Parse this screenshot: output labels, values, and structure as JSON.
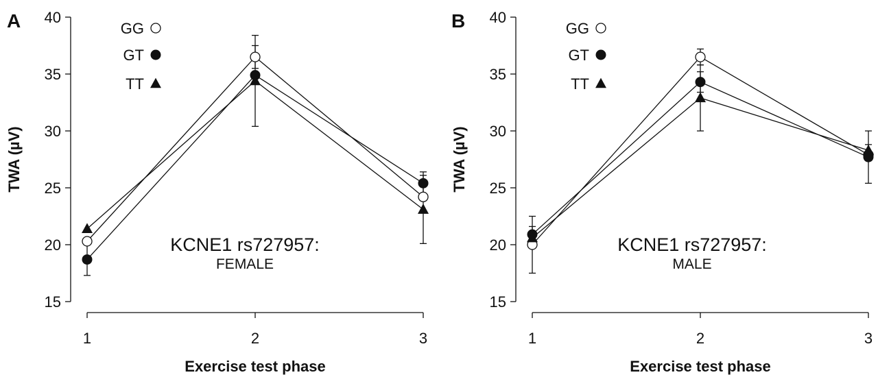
{
  "chart_data": [
    {
      "type": "line",
      "panel_label": "A",
      "annotation_line1": "KCNE1 rs727957:",
      "annotation_line2": "FEMALE",
      "xlabel": "Exercise test phase",
      "ylabel": "TWA (µV)",
      "x": [
        1,
        2,
        3
      ],
      "xticks": [
        "1",
        "2",
        "3"
      ],
      "ylim": [
        15,
        40
      ],
      "yticks": [
        15,
        20,
        25,
        30,
        35,
        40
      ],
      "legend_position": "top-left",
      "series": [
        {
          "name": "GG",
          "marker": "open-circle",
          "values": [
            20.3,
            36.5,
            24.2
          ],
          "err": [
            null,
            1.0,
            null
          ]
        },
        {
          "name": "GT",
          "marker": "filled-circle",
          "values": [
            18.7,
            34.9,
            25.4
          ],
          "err": [
            1.4,
            null,
            1.0
          ]
        },
        {
          "name": "TT",
          "marker": "filled-triangle",
          "values": [
            21.4,
            34.4,
            23.1
          ],
          "err": [
            null,
            4.0,
            3.0
          ]
        }
      ]
    },
    {
      "type": "line",
      "panel_label": "B",
      "annotation_line1": "KCNE1 rs727957:",
      "annotation_line2": "MALE",
      "xlabel": "Exercise test phase",
      "ylabel": "TWA (µV)",
      "x": [
        1,
        2,
        3
      ],
      "xticks": [
        "1",
        "2",
        "3"
      ],
      "ylim": [
        15,
        40
      ],
      "yticks": [
        15,
        20,
        25,
        30,
        35,
        40
      ],
      "legend_position": "top-left",
      "series": [
        {
          "name": "GG",
          "marker": "open-circle",
          "values": [
            20.0,
            36.5,
            27.9
          ],
          "err": [
            2.5,
            0.7,
            null
          ]
        },
        {
          "name": "GT",
          "marker": "filled-circle",
          "values": [
            20.9,
            34.3,
            27.7
          ],
          "err": [
            0.7,
            0.9,
            2.3
          ]
        },
        {
          "name": "TT",
          "marker": "filled-triangle",
          "values": [
            20.6,
            32.9,
            28.3
          ],
          "err": [
            null,
            2.9,
            0.5
          ]
        }
      ]
    }
  ]
}
